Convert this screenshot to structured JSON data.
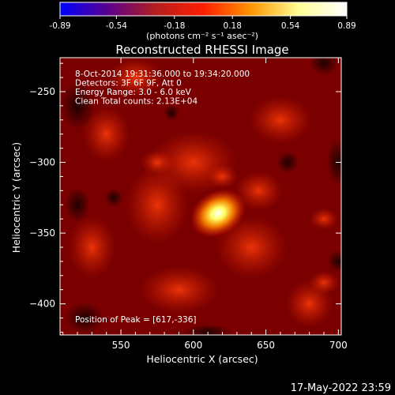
{
  "colorbar": {
    "ticks": [
      "-0.89",
      "-0.54",
      "-0.18",
      "0.18",
      "0.54",
      "0.89"
    ],
    "tick_values": [
      -0.89,
      -0.54,
      -0.18,
      0.18,
      0.54,
      0.89
    ],
    "range": [
      -0.89,
      0.89
    ],
    "units_label": "(photons cm⁻² s⁻¹ asec⁻²)",
    "stops": [
      "#0000ff",
      "#5a008c",
      "#b41e1e",
      "#ff1e00",
      "#ff9600",
      "#ffff96",
      "#ffffff"
    ]
  },
  "chart_data": {
    "type": "heatmap",
    "title": "Reconstructed RHESSI Image",
    "xlabel": "Heliocentric X (arcsec)",
    "ylabel": "Heliocentric Y (arcsec)",
    "xlim": [
      508,
      702
    ],
    "ylim": [
      -422,
      -226
    ],
    "x_ticks": [
      550,
      600,
      650,
      700
    ],
    "y_ticks": [
      -250,
      -300,
      -350,
      -400
    ],
    "x_tick_labels": [
      "550",
      "600",
      "650",
      "700"
    ],
    "y_tick_labels": [
      "−250",
      "−300",
      "−350",
      "−400"
    ],
    "annotations": [
      " 8-Oct-2014 19:31:36.000 to 19:34:20.000",
      "Detectors: 3F 6F 9F, Att 0",
      "Energy Range: 3.0 - 6.0 keV",
      "Clean    Total counts: 2.13E+04"
    ],
    "peak_label": "Position of Peak = [617,-336]",
    "peak": [
      617,
      -336
    ],
    "sources": [
      {
        "x": 617,
        "y": -336,
        "value": 0.89
      },
      {
        "x": 620,
        "y": -310,
        "value": 0.3
      },
      {
        "x": 575,
        "y": -300,
        "value": 0.35
      },
      {
        "x": 690,
        "y": -340,
        "value": 0.25
      },
      {
        "x": 690,
        "y": -385,
        "value": 0.3
      }
    ]
  },
  "footer": {
    "timestamp": "17-May-2022 23:59"
  }
}
